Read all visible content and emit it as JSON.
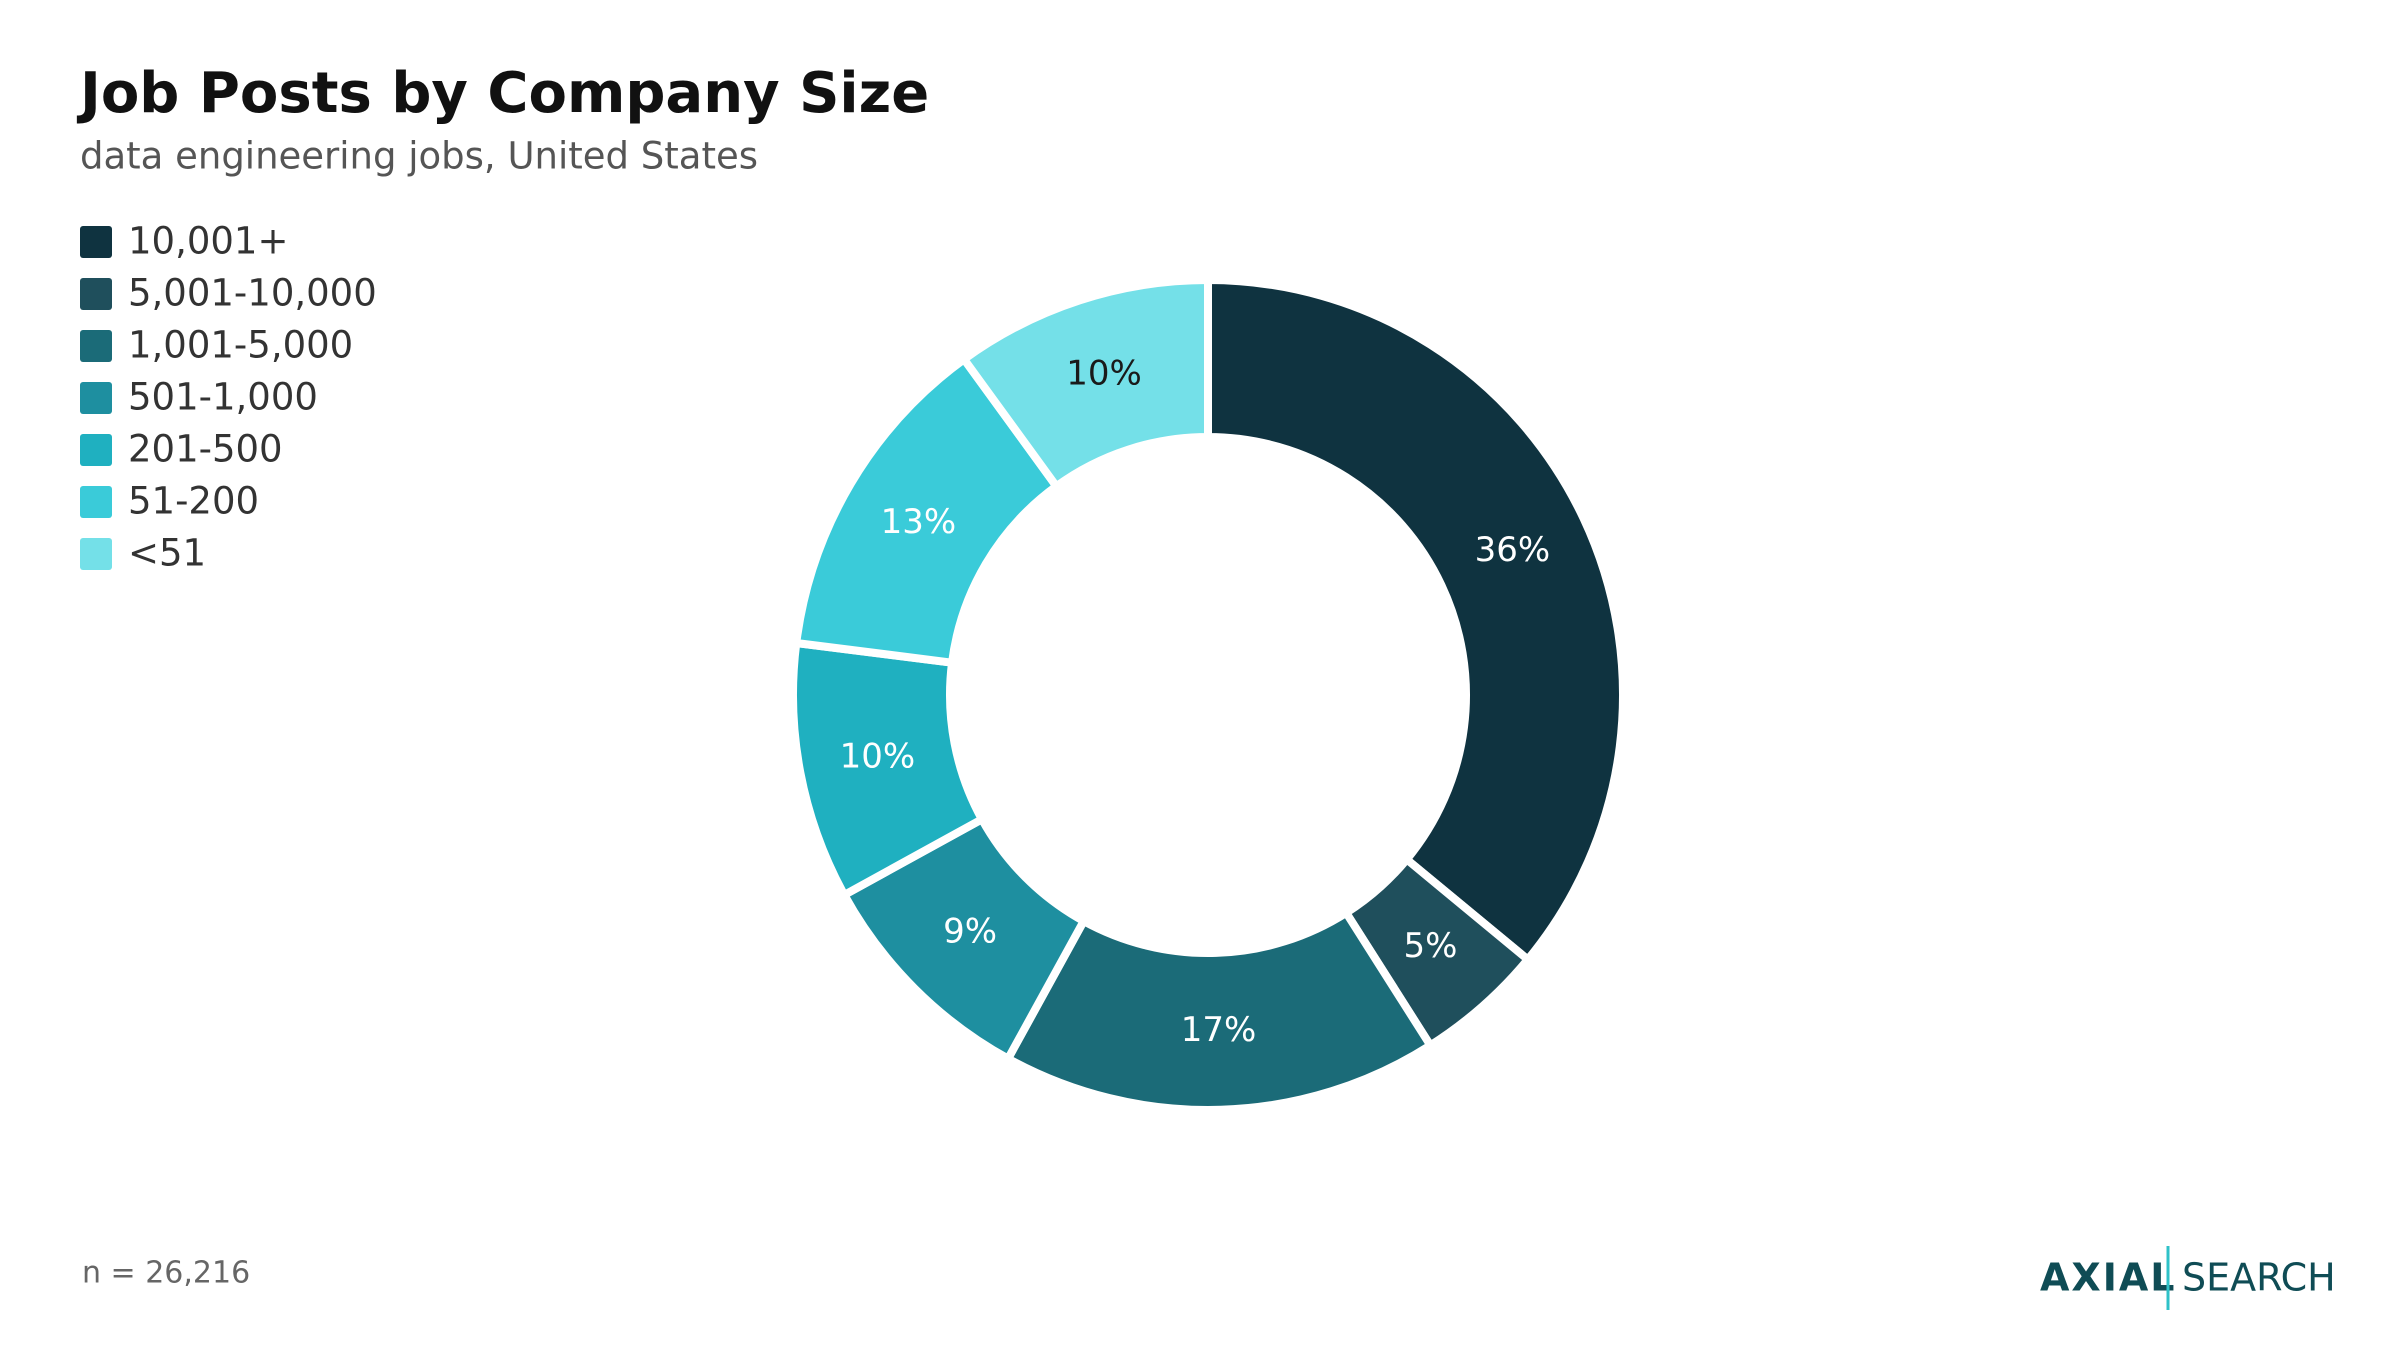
{
  "chart_data": {
    "type": "pie",
    "title": "Job Posts by Company Size",
    "subtitle": "data engineering jobs, United States",
    "categories": [
      "10,001+",
      "5,001-10,000",
      "1,001-5,000",
      "501-1,000",
      "201-500",
      "51-200",
      "<51"
    ],
    "values": [
      36,
      5,
      17,
      9,
      10,
      13,
      10
    ],
    "value_labels": [
      "36%",
      "5%",
      "17%",
      "9%",
      "10%",
      "13%",
      "10%"
    ],
    "colors": [
      "#0f3340",
      "#1f4f5c",
      "#1b6b78",
      "#1e8fa0",
      "#1fb0c0",
      "#3acbd9",
      "#74e0e8"
    ],
    "donut": true,
    "legend": "top-left",
    "note": "n = 26,216"
  },
  "logo": {
    "left": "AXIAL",
    "right": "SEARCH"
  }
}
